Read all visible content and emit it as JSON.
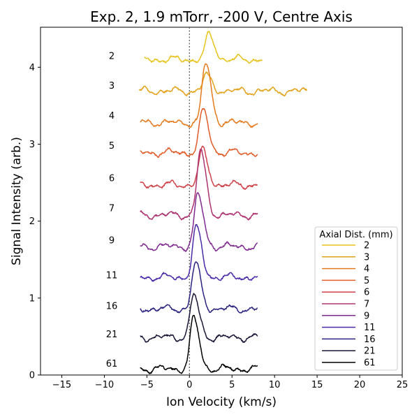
{
  "chart_data": {
    "type": "line",
    "title": "Exp. 2, 1.9 mTorr, -200 V, Centre Axis",
    "xlabel": "Ion Velocity (km/s)",
    "ylabel": "Signal Intensity (arb.)",
    "xlim": [
      -17.5,
      25
    ],
    "ylim": [
      0,
      4.52
    ],
    "xticks": [
      -15,
      -10,
      -5,
      0,
      5,
      10,
      15,
      20,
      25
    ],
    "yticks": [
      0,
      1,
      2,
      3,
      4
    ],
    "reference_line_x": 0,
    "grid": false,
    "legend": {
      "title": "Axial Dist. (mm)",
      "placement": "lower-right"
    },
    "series": [
      {
        "name": "2",
        "color": "#e8c31c",
        "baseline": 4.1,
        "peak_x": 2.3,
        "peak_height": 0.32,
        "x_range": [
          -5.3,
          8.6
        ],
        "label_y": 4.15
      },
      {
        "name": "3",
        "color": "#e2a31a",
        "baseline": 3.69,
        "peak_x": 2.0,
        "peak_height": 0.2,
        "x_range": [
          -5.9,
          13.8
        ],
        "label_y": 3.76
      },
      {
        "name": "4",
        "color": "#e57a1c",
        "baseline": 3.28,
        "peak_x": 1.9,
        "peak_height": 0.77,
        "x_range": [
          -5.8,
          8.0
        ],
        "label_y": 3.37
      },
      {
        "name": "5",
        "color": "#e25b28",
        "baseline": 2.89,
        "peak_x": 1.6,
        "peak_height": 0.55,
        "x_range": [
          -5.8,
          8.0
        ],
        "label_y": 2.98
      },
      {
        "name": "6",
        "color": "#cf4147",
        "baseline": 2.47,
        "peak_x": 1.5,
        "peak_height": 0.45,
        "x_range": [
          -5.8,
          8.0
        ],
        "label_y": 2.56
      },
      {
        "name": "7",
        "color": "#ad3370",
        "baseline": 2.08,
        "peak_x": 1.3,
        "peak_height": 0.83,
        "x_range": [
          -5.8,
          8.0
        ],
        "label_y": 2.17
      },
      {
        "name": "9",
        "color": "#7e2a8e",
        "baseline": 1.67,
        "peak_x": 1.0,
        "peak_height": 0.67,
        "x_range": [
          -5.8,
          8.0
        ],
        "label_y": 1.75
      },
      {
        "name": "11",
        "color": "#4a2aa8",
        "baseline": 1.27,
        "peak_x": 0.8,
        "peak_height": 0.64,
        "x_range": [
          -5.8,
          8.0
        ],
        "label_y": 1.3
      },
      {
        "name": "16",
        "color": "#2a2380",
        "baseline": 0.86,
        "peak_x": 0.7,
        "peak_height": 0.59,
        "x_range": [
          -5.8,
          8.0
        ],
        "label_y": 0.9
      },
      {
        "name": "21",
        "color": "#181637",
        "baseline": 0.49,
        "peak_x": 0.5,
        "peak_height": 0.55,
        "x_range": [
          -5.8,
          8.0
        ],
        "label_y": 0.53
      },
      {
        "name": "61",
        "color": "#000000",
        "baseline": 0.08,
        "peak_x": 0.5,
        "peak_height": 0.66,
        "x_range": [
          -5.8,
          8.0
        ],
        "label_y": 0.15
      }
    ]
  }
}
